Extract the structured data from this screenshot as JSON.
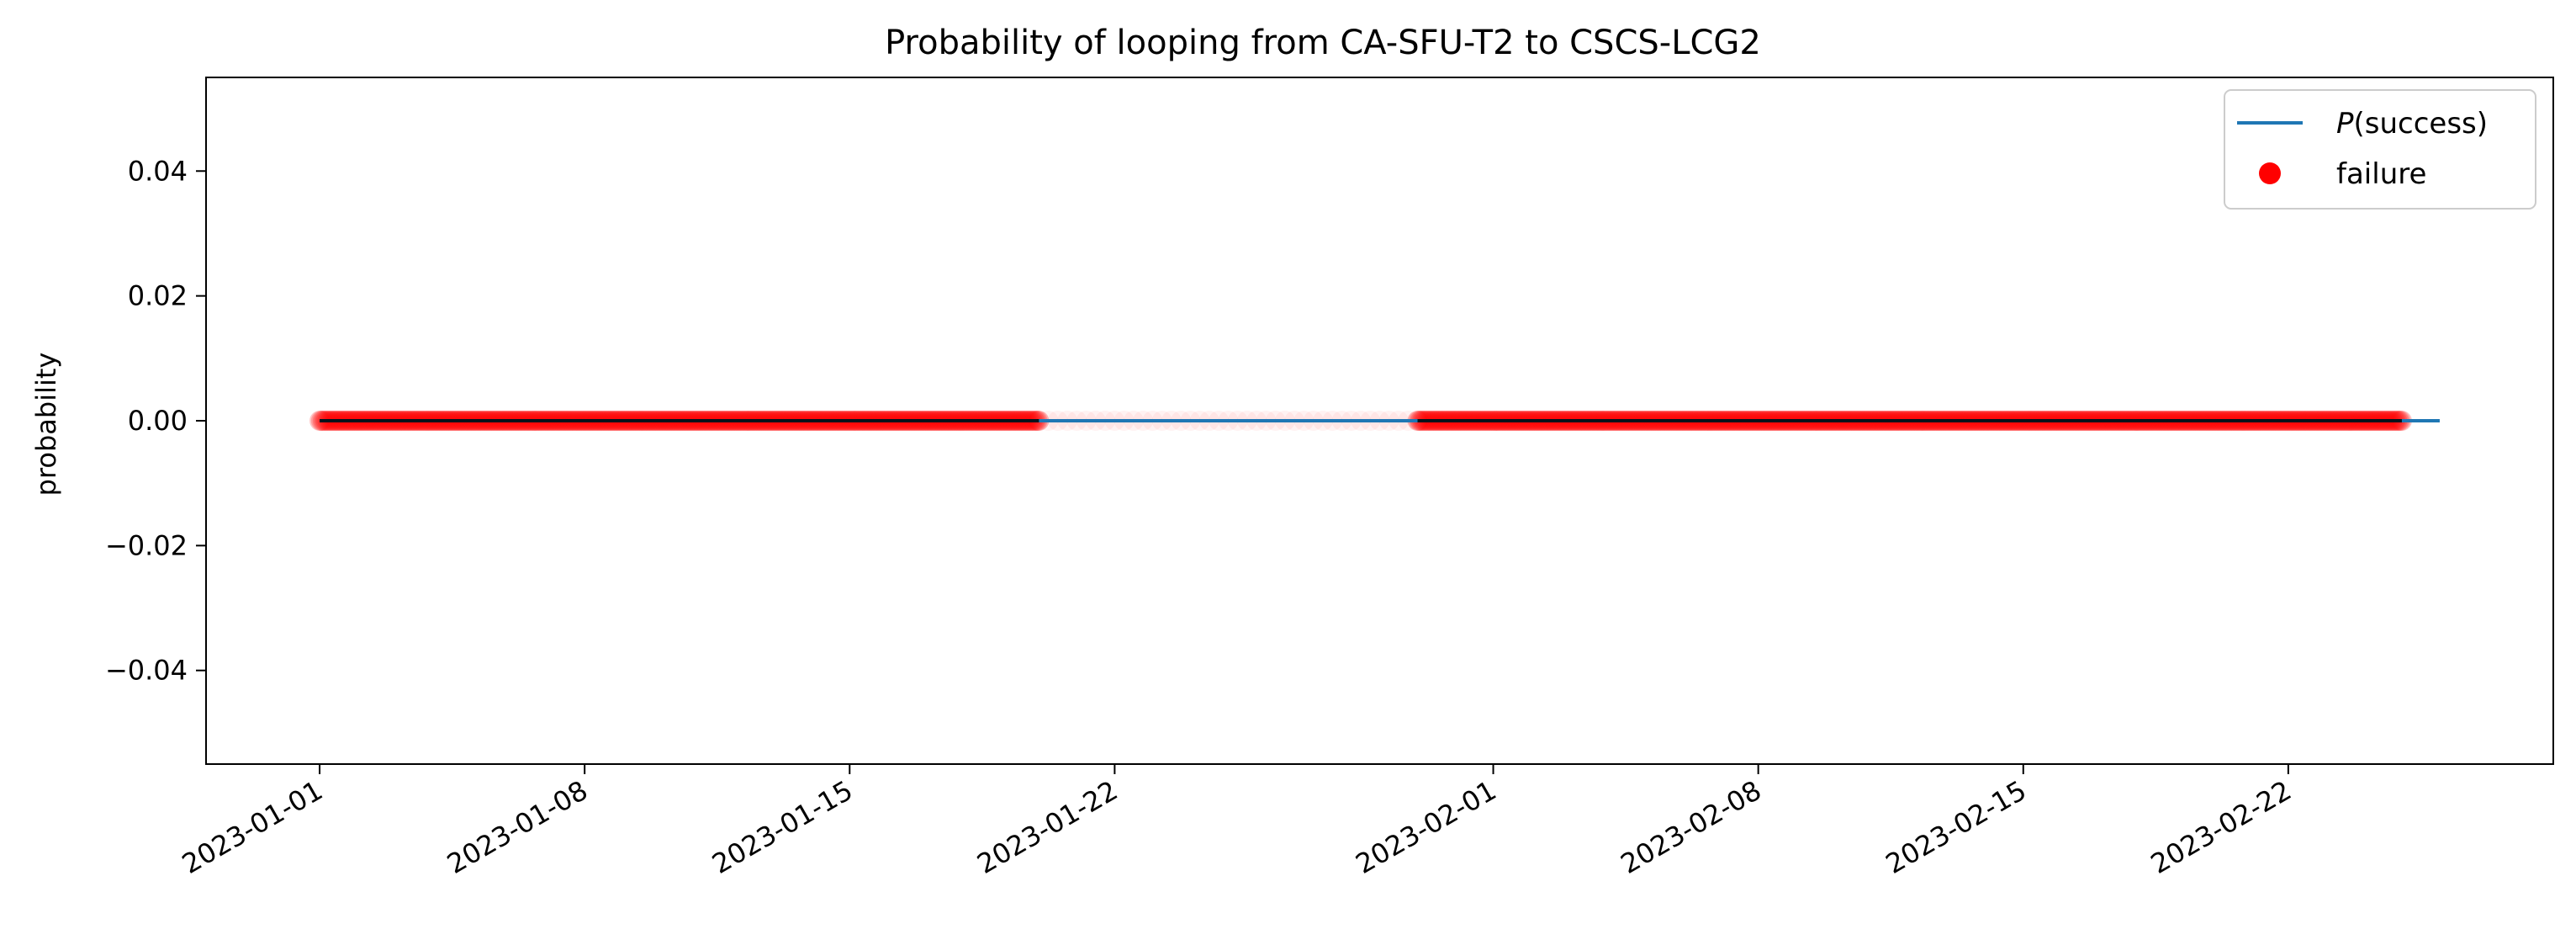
{
  "chart_data": {
    "type": "line",
    "title": "Probability of looping from CA-SFU-T2 to CSCS-LCG2",
    "xlabel": "",
    "ylabel": "probability",
    "x_axis": {
      "kind": "date",
      "range": [
        "2022-12-29",
        "2023-03-01"
      ],
      "ticks": [
        "2023-01-01",
        "2023-01-08",
        "2023-01-15",
        "2023-01-22",
        "2023-02-01",
        "2023-02-08",
        "2023-02-15",
        "2023-02-22"
      ]
    },
    "y_axis": {
      "range": [
        -0.055,
        0.055
      ],
      "ticks": [
        0.04,
        0.02,
        0.0,
        -0.02,
        -0.04
      ],
      "tick_labels": [
        "0.04",
        "0.02",
        "0.00",
        "−0.02",
        "−0.04"
      ]
    },
    "grid": false,
    "legend": {
      "placement": "top-right",
      "entries": [
        "P(success)",
        "failure"
      ]
    },
    "series": [
      {
        "name": "P(success)",
        "kind": "line",
        "color": "#1f77b4",
        "x": [
          "2023-01-01",
          "2023-02-26"
        ],
        "y": [
          0.0,
          0.0
        ]
      },
      {
        "name": "failure",
        "kind": "scatter",
        "color": "#ff0000",
        "segments": [
          {
            "x_start": "2023-01-01",
            "x_end": "2023-01-20",
            "y": 0.0,
            "density": "dense"
          },
          {
            "x_start": "2023-01-20",
            "x_end": "2023-01-30",
            "y": 0.0,
            "density": "sparse"
          },
          {
            "x_start": "2023-01-30",
            "x_end": "2023-02-25",
            "y": 0.0,
            "density": "dense"
          }
        ]
      }
    ]
  }
}
